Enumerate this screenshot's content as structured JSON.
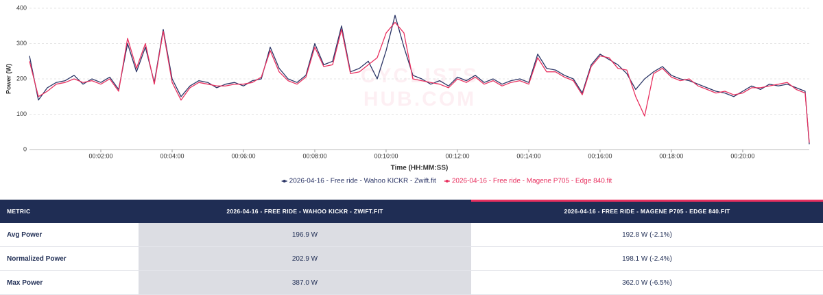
{
  "chart_data": {
    "type": "line",
    "y_label": "Power (W)",
    "x_label": "Time (HH:MM:SS)",
    "watermark": [
      "CYCLISTS",
      "HUB.COM"
    ],
    "x": [
      0,
      15,
      30,
      45,
      60,
      75,
      90,
      105,
      120,
      135,
      150,
      165,
      180,
      195,
      210,
      225,
      240,
      255,
      270,
      285,
      300,
      315,
      330,
      345,
      360,
      375,
      390,
      405,
      420,
      435,
      450,
      465,
      480,
      495,
      510,
      525,
      540,
      555,
      570,
      585,
      600,
      615,
      630,
      645,
      660,
      675,
      690,
      705,
      720,
      735,
      750,
      765,
      780,
      795,
      810,
      825,
      840,
      855,
      870,
      885,
      900,
      915,
      930,
      945,
      960,
      975,
      990,
      1005,
      1020,
      1035,
      1050,
      1065,
      1080,
      1095,
      1110,
      1125,
      1140,
      1155,
      1170,
      1185,
      1200,
      1215,
      1230,
      1245,
      1260,
      1275,
      1290,
      1305,
      1312
    ],
    "series": [
      {
        "name": "2026-04-16 - Free ride - Wahoo KICKR - Zwift.fit",
        "color": "#2b3566",
        "values": [
          265,
          140,
          175,
          190,
          195,
          210,
          185,
          200,
          190,
          205,
          170,
          300,
          220,
          290,
          190,
          340,
          200,
          150,
          180,
          195,
          190,
          175,
          185,
          190,
          180,
          195,
          200,
          290,
          230,
          200,
          190,
          210,
          300,
          240,
          250,
          350,
          220,
          230,
          250,
          200,
          280,
          380,
          290,
          210,
          200,
          185,
          195,
          180,
          205,
          195,
          210,
          190,
          200,
          185,
          195,
          200,
          190,
          270,
          230,
          225,
          210,
          200,
          160,
          240,
          270,
          255,
          240,
          215,
          170,
          200,
          220,
          235,
          210,
          200,
          195,
          185,
          175,
          165,
          160,
          150,
          165,
          180,
          170,
          185,
          180,
          185,
          175,
          165,
          15
        ]
      },
      {
        "name": "2026-04-16 - Free ride - Magene P705 - Edge 840.fit",
        "color": "#e8305f",
        "values": [
          250,
          150,
          165,
          185,
          190,
          200,
          190,
          195,
          185,
          200,
          165,
          315,
          230,
          300,
          185,
          335,
          190,
          140,
          175,
          190,
          185,
          180,
          180,
          185,
          185,
          190,
          205,
          280,
          220,
          195,
          185,
          205,
          290,
          235,
          240,
          340,
          215,
          220,
          240,
          260,
          330,
          360,
          330,
          200,
          195,
          190,
          185,
          175,
          200,
          190,
          205,
          185,
          195,
          180,
          190,
          195,
          185,
          260,
          220,
          220,
          205,
          195,
          155,
          235,
          265,
          260,
          230,
          225,
          150,
          95,
          215,
          230,
          205,
          195,
          200,
          180,
          170,
          160,
          165,
          155,
          160,
          175,
          175,
          180,
          185,
          190,
          170,
          160,
          20
        ]
      }
    ],
    "xlim": [
      0,
      1312
    ],
    "xticks": [
      {
        "value": 120,
        "label": "00:02:00"
      },
      {
        "value": 240,
        "label": "00:04:00"
      },
      {
        "value": 360,
        "label": "00:06:00"
      },
      {
        "value": 480,
        "label": "00:08:00"
      },
      {
        "value": 600,
        "label": "00:10:00"
      },
      {
        "value": 720,
        "label": "00:12:00"
      },
      {
        "value": 840,
        "label": "00:14:00"
      },
      {
        "value": 960,
        "label": "00:16:00"
      },
      {
        "value": 1080,
        "label": "00:18:00"
      },
      {
        "value": 1200,
        "label": "00:20:00"
      }
    ],
    "ylim": [
      0,
      400
    ],
    "yticks": [
      0,
      100,
      200,
      300,
      400
    ],
    "grid": true,
    "legend": "bottom"
  },
  "table": {
    "header": [
      "METRIC",
      "2026-04-16 - FREE RIDE - WAHOO KICKR - ZWIFT.FIT",
      "2026-04-16 - FREE RIDE - MAGENE P705 - EDGE 840.FIT"
    ],
    "rows": [
      [
        "Avg Power",
        "196.9 W",
        "192.8 W (-2.1%)"
      ],
      [
        "Normalized Power",
        "202.9 W",
        "198.1 W (-2.4%)"
      ],
      [
        "Max Power",
        "387.0 W",
        "362.0 W (-6.5%)"
      ]
    ]
  }
}
